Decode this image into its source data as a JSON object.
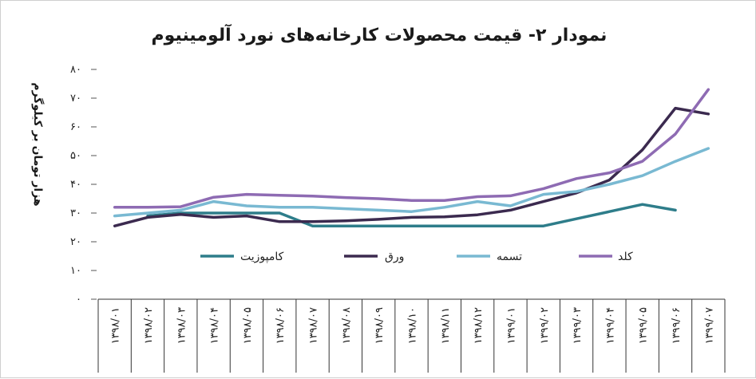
{
  "chart_data": {
    "type": "line",
    "title": "نمودار ۲- قیمت محصولات کارخانه‌های نورد آلومینیوم",
    "ylabel": "هزار تومان بر کیلوگرم",
    "xlabel": "",
    "ylim": [
      0,
      80
    ],
    "yticks": [
      0,
      10,
      20,
      30,
      40,
      50,
      60,
      70,
      80
    ],
    "ytick_labels": [
      "۰",
      "۱۰",
      "۲۰",
      "۳۰",
      "۴۰",
      "۵۰",
      "۶۰",
      "۷۰",
      "۸۰"
    ],
    "categories": [
      "۱۳۹۸/۰۱",
      "۱۳۹۸/۰۲",
      "۱۳۹۸/۰۳",
      "۱۳۹۸/۰۴",
      "۱۳۹۸/۰۵",
      "۱۳۹۸/۰۶",
      "۱۳۹۸/۰۷",
      "۱۳۹۸/۰۸",
      "۱۳۹۸/۰۹",
      "۱۳۹۸/۱۰",
      "۱۳۹۸/۱۱",
      "۱۳۹۸/۱۲",
      "۱۳۹۹/۰۱",
      "۱۳۹۹/۰۲",
      "۱۳۹۹/۰۳",
      "۱۳۹۹/۰۴",
      "۱۳۹۹/۰۵",
      "۱۳۹۹/۰۶",
      "۱۳۹۹/۰۷"
    ],
    "grid": false,
    "legend_position": "bottom",
    "series": [
      {
        "name": "کامپوزیت",
        "color": "#2e7d8a",
        "values": [
          null,
          29,
          30,
          30,
          30,
          30,
          25.5,
          25.5,
          25.5,
          25.5,
          25.5,
          25.5,
          25.5,
          25.5,
          28,
          30.5,
          33,
          31,
          null
        ]
      },
      {
        "name": "ورق",
        "color": "#3b2a4f",
        "values": [
          25.5,
          28.5,
          29.5,
          28.5,
          29,
          27,
          27,
          27.3,
          27.8,
          28.5,
          28.7,
          29.4,
          31,
          34,
          37,
          41.5,
          52,
          66.5,
          64.5
        ]
      },
      {
        "name": "تسمه",
        "color": "#79b9d2",
        "values": [
          29,
          30,
          31,
          34,
          32.5,
          32,
          32,
          31.5,
          31,
          30.5,
          32,
          34,
          32.5,
          36.5,
          37.5,
          40,
          43,
          48,
          52.5
        ]
      },
      {
        "name": "کلد",
        "color": "#8e6bb3",
        "values": [
          32,
          32,
          32.2,
          35.5,
          36.5,
          36.2,
          35.9,
          35.4,
          35,
          34.4,
          34.4,
          35.7,
          36,
          38.5,
          42,
          44,
          48,
          57.5,
          73
        ]
      }
    ]
  }
}
